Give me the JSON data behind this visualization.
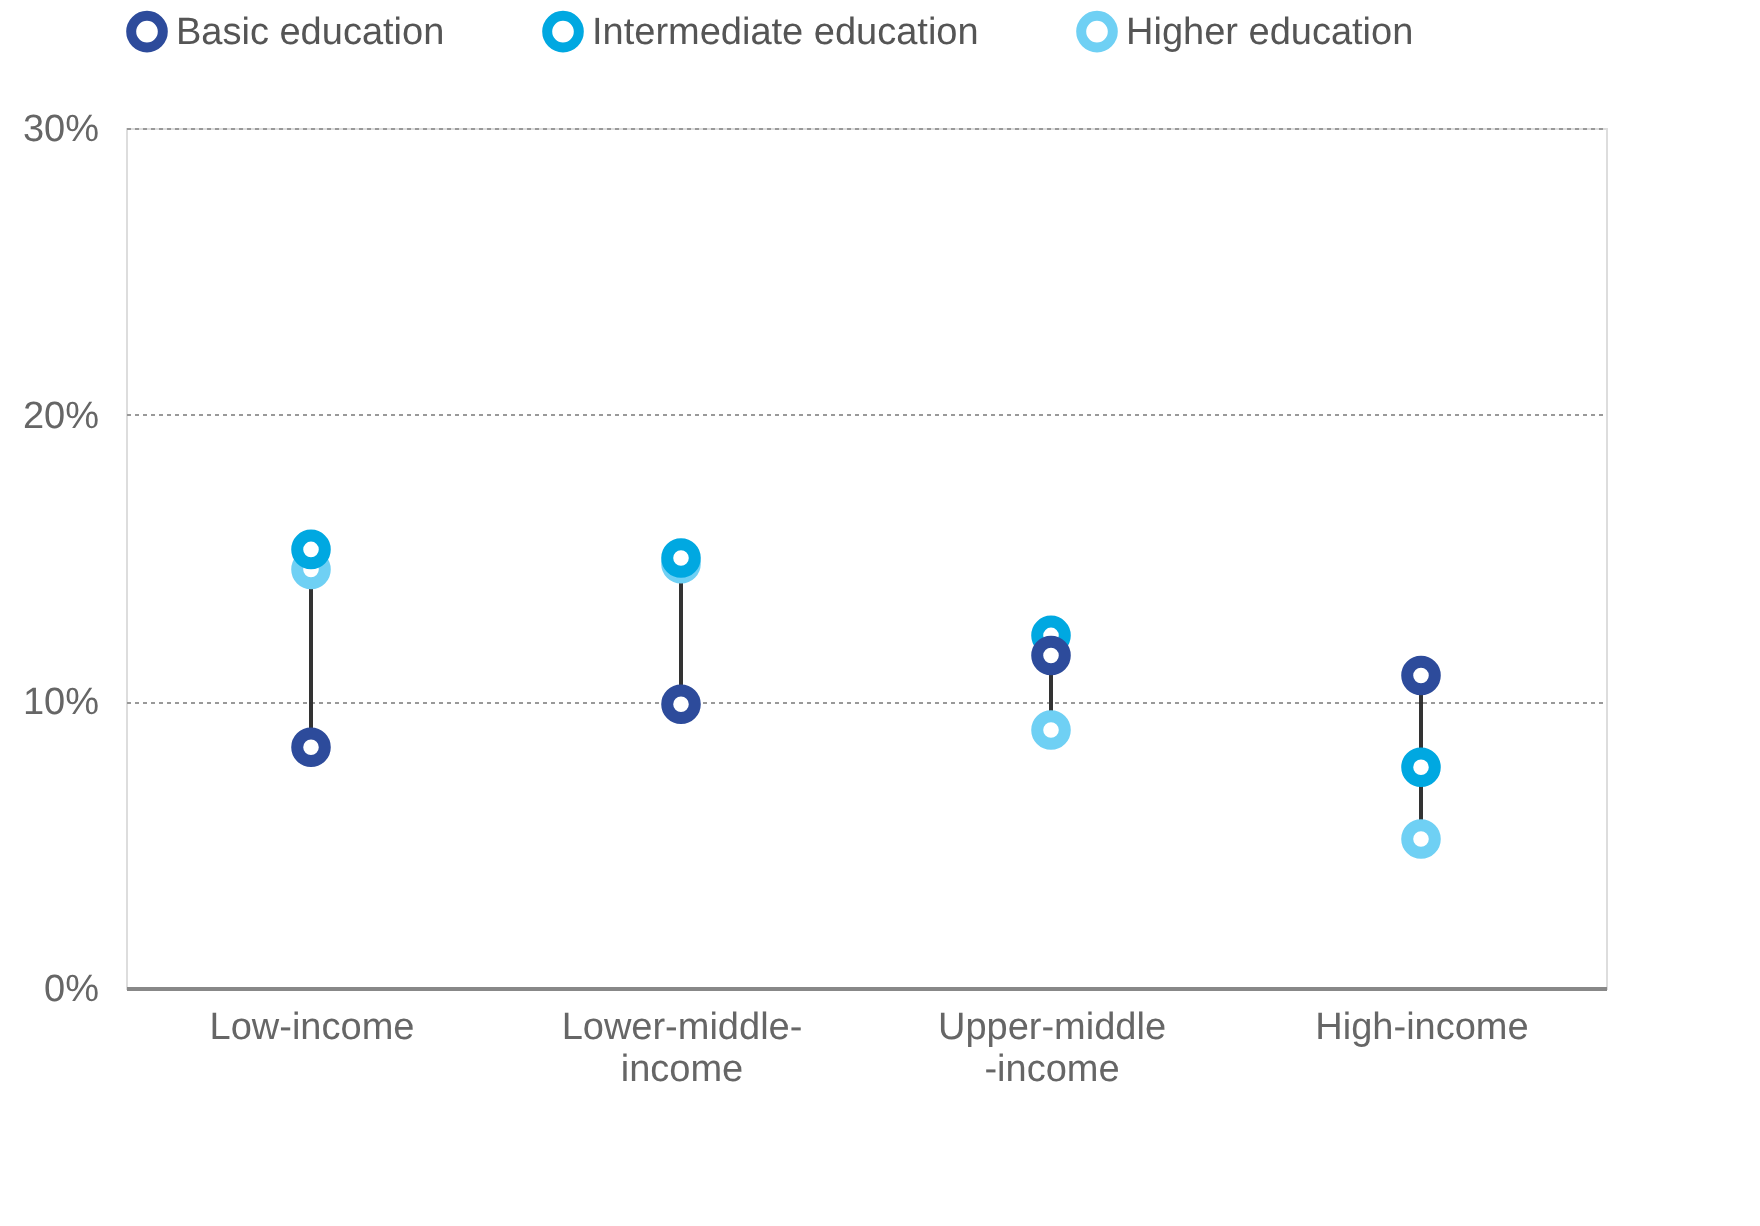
{
  "chart_data": {
    "type": "scatter",
    "categories": [
      "Low-income",
      "Lower-middle-\nincome",
      "Upper-middle\n-income",
      "High-income"
    ],
    "series": [
      {
        "name": "Basic education",
        "color": "#2d4b9b",
        "values": [
          8.4,
          9.9,
          11.6,
          10.9
        ]
      },
      {
        "name": "Intermediate education",
        "color": "#00a8e1",
        "values": [
          15.3,
          15.0,
          12.3,
          7.7
        ]
      },
      {
        "name": "Higher education",
        "color": "#6fd0f4",
        "values": [
          14.6,
          14.8,
          9.0,
          5.2
        ]
      }
    ],
    "ylim": [
      0,
      30
    ],
    "yticks": [
      {
        "value": 0,
        "label": "0%"
      },
      {
        "value": 10,
        "label": "10%"
      },
      {
        "value": 20,
        "label": "20%"
      },
      {
        "value": 30,
        "label": "30%"
      }
    ],
    "grid": "y",
    "legend": "top",
    "marker": "circle"
  }
}
